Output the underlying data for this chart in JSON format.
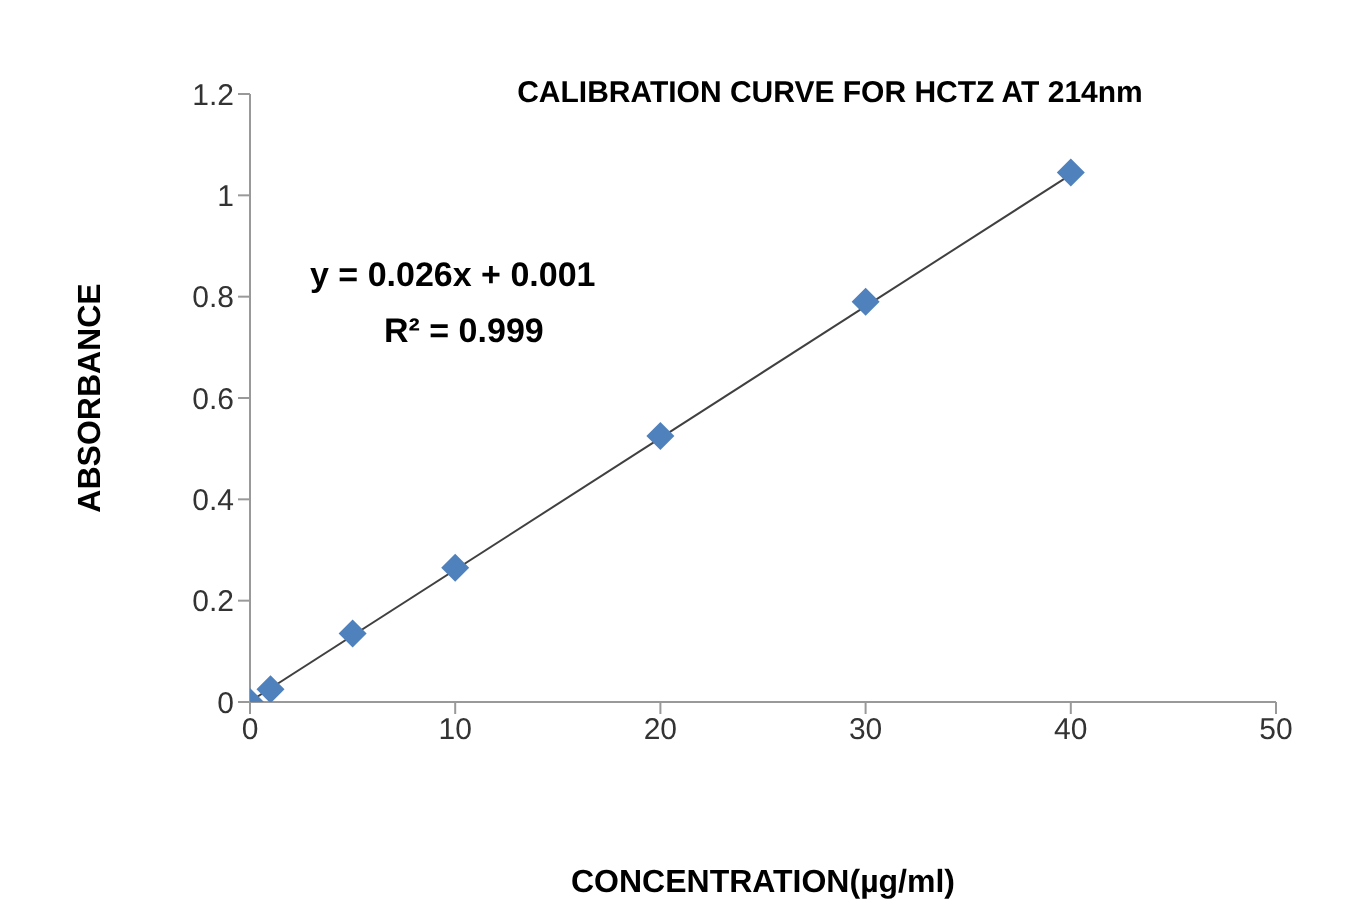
{
  "chart_data": {
    "type": "scatter",
    "title": "CALIBRATION CURVE  FOR  HCTZ AT 214nm",
    "xlabel": "CONCENTRATION(µg/ml)",
    "ylabel": "ABSORBANCE",
    "x": [
      0,
      1,
      5,
      10,
      20,
      30,
      40
    ],
    "series": [
      {
        "color": "#4f81bd",
        "marker": "diamond",
        "values": [
          0,
          0.025,
          0.135,
          0.265,
          0.525,
          0.79,
          1.045
        ]
      },
      {
        "type": "line",
        "color": "#404040",
        "marker": "none",
        "x": [
          0,
          40
        ],
        "values": [
          0.001,
          1.041
        ]
      }
    ],
    "xlim": [
      0,
      50
    ],
    "xticks": [
      0,
      10,
      20,
      30,
      40,
      50
    ],
    "ylim": [
      0,
      1.2
    ],
    "yticks": [
      0,
      0.2,
      0.4,
      0.6,
      0.8,
      1,
      1.2
    ],
    "grid": false,
    "legend": false,
    "annotations": [
      "y = 0.026x + 0.001",
      "R² = 0.999"
    ]
  }
}
